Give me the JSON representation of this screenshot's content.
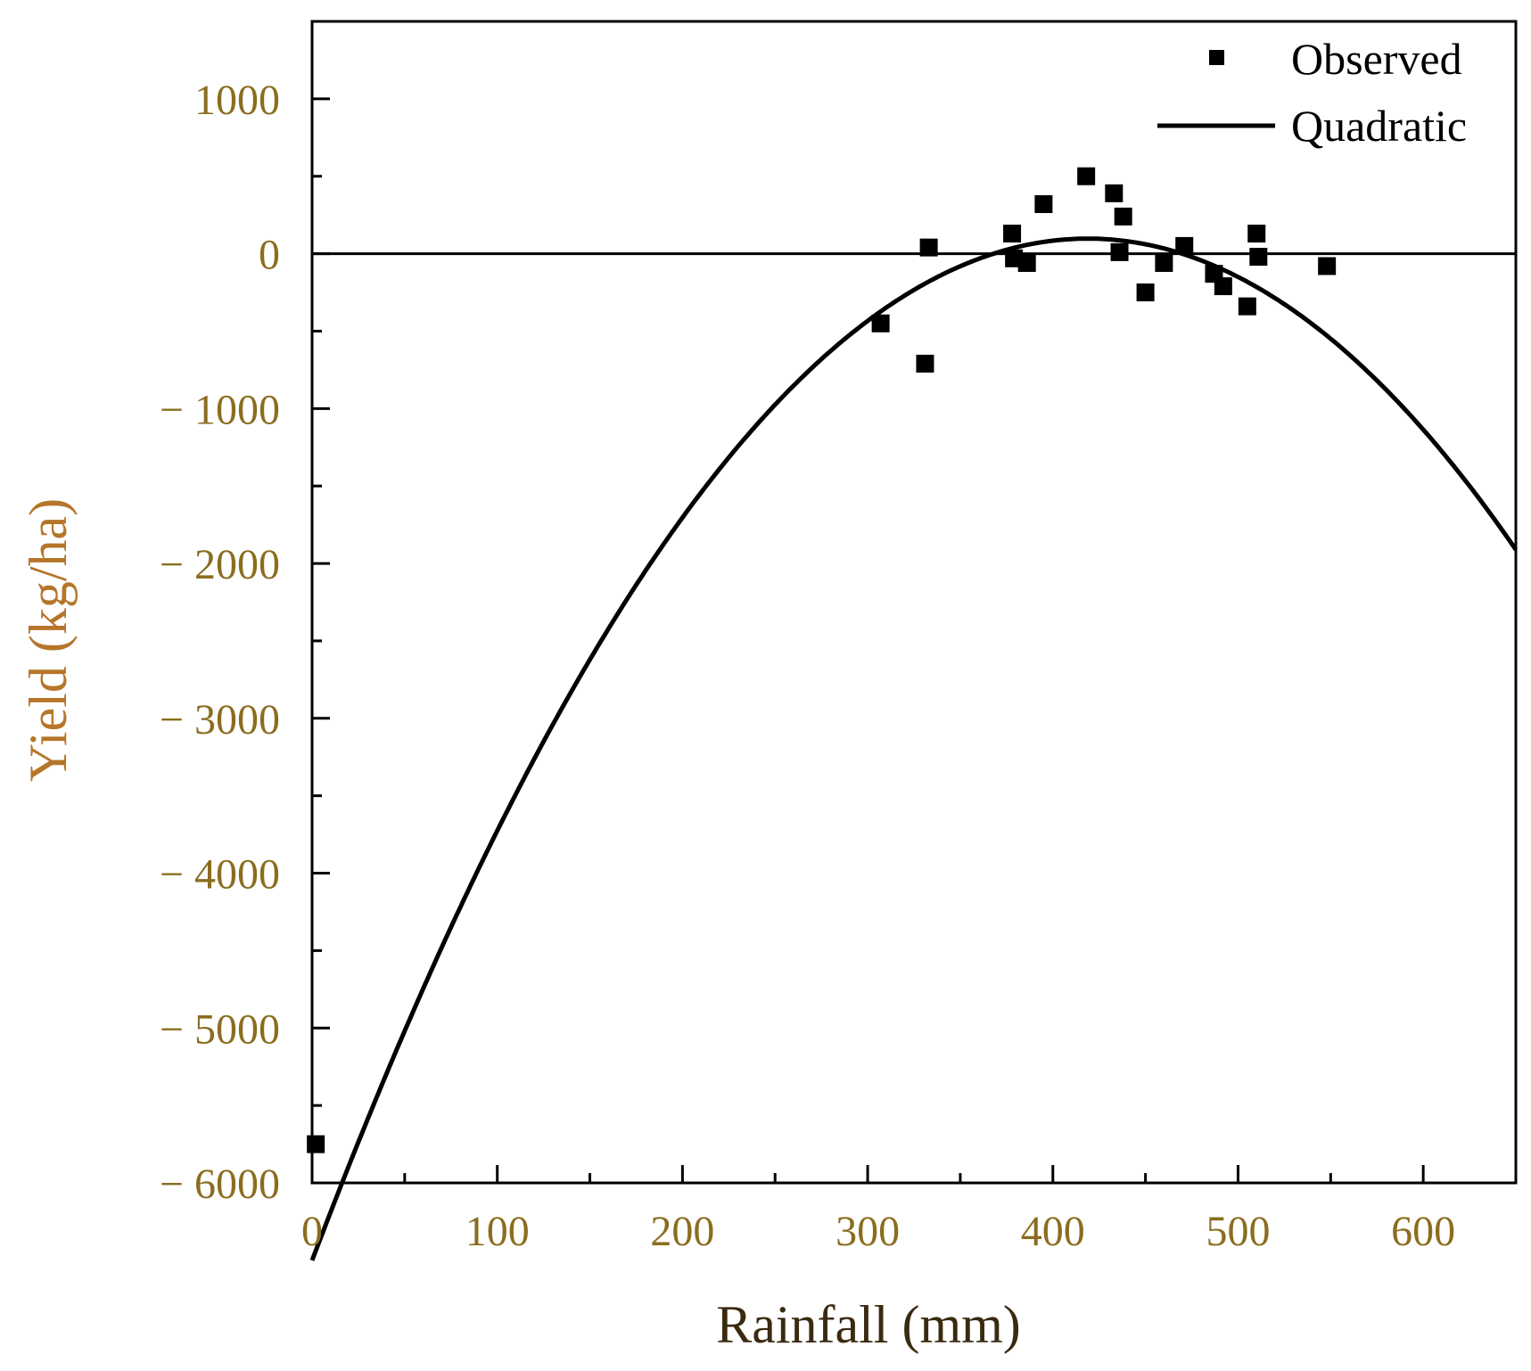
{
  "chart_data": {
    "type": "scatter",
    "title": "",
    "xlabel": "Rainfall (mm)",
    "ylabel": "Yield (kg/ha)",
    "xlim": [
      0,
      650
    ],
    "ylim": [
      -6000,
      1500
    ],
    "x_ticks": [
      0,
      100,
      200,
      300,
      400,
      500,
      600
    ],
    "y_ticks": [
      1000,
      0,
      -1000,
      -2000,
      -3000,
      -4000,
      -5000,
      -6000
    ],
    "x_tick_labels": [
      "0",
      "100",
      "200",
      "300",
      "400",
      "500",
      "600"
    ],
    "y_tick_labels": [
      "1000",
      "0",
      "− 1000",
      "− 2000",
      "− 3000",
      "− 4000",
      "− 5000",
      "− 6000"
    ],
    "legend_position": "top-right",
    "reference_line_y": 0,
    "series": [
      {
        "name": "Observed",
        "kind": "scatter",
        "marker": "square",
        "x": [
          2,
          307,
          331,
          333,
          378,
          379,
          386,
          395,
          418,
          433,
          438,
          436,
          450,
          460,
          471,
          487,
          492,
          505,
          510,
          511,
          548
        ],
        "y": [
          -5750,
          -450,
          -710,
          40,
          130,
          -30,
          -60,
          320,
          500,
          390,
          240,
          10,
          -250,
          -60,
          50,
          -130,
          -210,
          -340,
          130,
          -20,
          -80
        ]
      },
      {
        "name": "Quadratic",
        "kind": "line",
        "equation": "y = -0.0376 x^2 + 31.5 x - 6500",
        "coefficients": {
          "a": -0.0376,
          "b": 31.5,
          "c": -6500
        },
        "x_range": [
          0,
          650
        ]
      }
    ],
    "colors": {
      "axis": "#000000",
      "tick_label": "#8b6d1f",
      "axis_title_x": "#3a2a10",
      "axis_title_y": "#b5762a",
      "series": "#000000"
    }
  }
}
